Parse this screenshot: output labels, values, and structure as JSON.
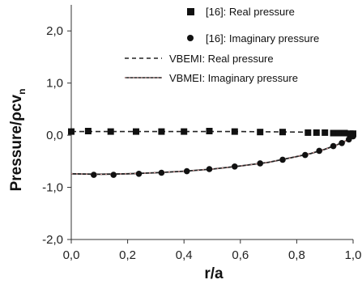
{
  "chart_data": {
    "type": "line",
    "title": "",
    "xlabel": "r/a",
    "ylabel": "Pressure/ρcv",
    "ylabel_subscript": "n",
    "xlim": [
      0,
      1
    ],
    "ylim": [
      -2,
      2.5
    ],
    "x_ticks": [
      "0,0",
      "0,2",
      "0,4",
      "0,6",
      "0,8",
      "1,0"
    ],
    "y_ticks": [
      "2,0",
      "1,0",
      "0,0",
      "-1,0",
      "-2,0"
    ],
    "x_tick_values": [
      0,
      0.2,
      0.4,
      0.6,
      0.8,
      1.0
    ],
    "y_tick_values": [
      2,
      1,
      0,
      -1,
      -2
    ],
    "grid": false,
    "legend_position": "top-right",
    "colors": {
      "axis": "#333333",
      "marker": "#111111",
      "line_real": "#222222",
      "line_imag": "#222222",
      "line_imag_overlay": "#e8a0a0"
    },
    "series": [
      {
        "name": "[16]: Real pressure",
        "style": "square-marker",
        "x": [
          0.0,
          0.06,
          0.14,
          0.23,
          0.32,
          0.4,
          0.49,
          0.58,
          0.67,
          0.75,
          0.84,
          0.87,
          0.9,
          0.93,
          0.95,
          0.97,
          0.99,
          1.0
        ],
        "y": [
          0.07,
          0.08,
          0.07,
          0.07,
          0.07,
          0.07,
          0.08,
          0.07,
          0.06,
          0.06,
          0.05,
          0.05,
          0.05,
          0.04,
          0.04,
          0.04,
          0.03,
          0.03
        ]
      },
      {
        "name": "[16]: Imaginary pressure",
        "style": "circle-marker",
        "x": [
          0.08,
          0.15,
          0.24,
          0.32,
          0.41,
          0.49,
          0.58,
          0.67,
          0.75,
          0.83,
          0.88,
          0.93,
          0.96,
          0.985,
          1.0
        ],
        "y": [
          -0.76,
          -0.76,
          -0.74,
          -0.72,
          -0.69,
          -0.65,
          -0.6,
          -0.54,
          -0.47,
          -0.38,
          -0.3,
          -0.21,
          -0.15,
          -0.08,
          -0.02
        ]
      },
      {
        "name": "VBEMI: Real pressure",
        "style": "dashed-line",
        "x": [
          0.0,
          0.2,
          0.4,
          0.6,
          0.8,
          0.9,
          0.95,
          1.0
        ],
        "y": [
          0.07,
          0.07,
          0.07,
          0.07,
          0.06,
          0.05,
          0.04,
          0.03
        ]
      },
      {
        "name": "VBMEI: Imaginary pressure",
        "style": "solid-line",
        "x": [
          0.0,
          0.1,
          0.2,
          0.3,
          0.4,
          0.5,
          0.6,
          0.7,
          0.8,
          0.85,
          0.9,
          0.94,
          0.97,
          0.99,
          1.0
        ],
        "y": [
          -0.74,
          -0.75,
          -0.74,
          -0.72,
          -0.69,
          -0.65,
          -0.59,
          -0.52,
          -0.41,
          -0.35,
          -0.27,
          -0.19,
          -0.12,
          -0.06,
          -0.01
        ]
      }
    ]
  }
}
